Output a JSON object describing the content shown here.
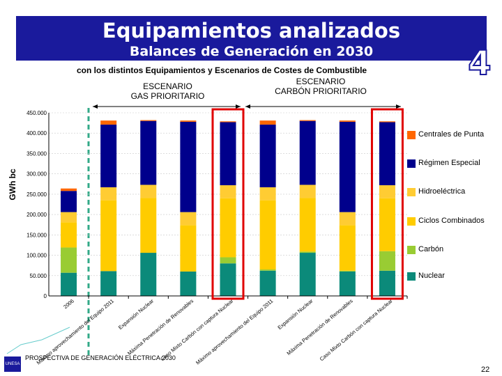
{
  "banner": {
    "title": "Equipamientos analizados",
    "subtitle": "Balances de Generación en 2030"
  },
  "subtitle": "con los distintos Equipamientos y Escenarios de Costes de Combustible",
  "badge": "4",
  "scenarios": {
    "gas_line1": "ESCENARIO",
    "gas_line2": "GAS PRIORITARIO",
    "coal_line1": "ESCENARIO",
    "coal_line2": "CARBÓN PRIORITARIO"
  },
  "footer": "PROSPECTIVA DE GENERACIÓN ELÉCTRICA 2030",
  "page_number": "22",
  "logo_text": "UNESA",
  "colors": {
    "nuclear": "#0b8a7a",
    "carbon": "#99cc33",
    "ciclos": "#ffcc00",
    "hidro": "#ffcc33",
    "regimen": "#00008c",
    "puntas": "#ff6600",
    "highlight": "#e00000",
    "dashed": "#33aa88"
  },
  "chart_data": {
    "type": "bar",
    "stacked": true,
    "ylabel": "GWh bc",
    "ylim": [
      0,
      450000
    ],
    "yticks": [
      "0",
      "50.000",
      "100.000",
      "150.000",
      "200.000",
      "250.000",
      "300.000",
      "350.000",
      "400.000",
      "450.000"
    ],
    "categories": [
      "2006",
      "Máximo aprovechamiento del Equipo 2011",
      "Expansión Nuclear",
      "Máxima Penetración de Renovables",
      "Caso Mixto Carbón con captura Nuclear",
      "Máximo aprovechamiento del Equipo 2011",
      "Expansión Nuclear",
      "Máxima Penetración de Renovables",
      "Caso Mixto Carbón con captura Nuclear"
    ],
    "series": [
      {
        "name": "Nuclear",
        "values": [
          57000,
          61000,
          106000,
          60000,
          80000,
          62000,
          106000,
          60000,
          62000
        ]
      },
      {
        "name": "Carbón",
        "values": [
          62000,
          0,
          0,
          0,
          15000,
          3000,
          3000,
          2000,
          48000
        ]
      },
      {
        "name": "Ciclos Combinados",
        "values": [
          62000,
          174000,
          135000,
          114000,
          145000,
          170000,
          132000,
          112000,
          130000
        ]
      },
      {
        "name": "Hidroeléctrica",
        "values": [
          25000,
          32000,
          32000,
          32000,
          32000,
          32000,
          32000,
          32000,
          32000
        ]
      },
      {
        "name": "Régimen Especial",
        "values": [
          52000,
          154000,
          157000,
          222000,
          155000,
          154000,
          157000,
          222000,
          155000
        ]
      },
      {
        "name": "Centrales de Punta",
        "values": [
          6000,
          10000,
          2000,
          3000,
          2000,
          10000,
          2000,
          3000,
          2000
        ]
      }
    ],
    "legend": [
      "Centrales de Punta",
      "Régimen Especial",
      "Hidroeléctrica",
      "Ciclos Combinados",
      "Carbón",
      "Nuclear"
    ],
    "legend_position": "right",
    "highlighted_categories": [
      4,
      8
    ]
  }
}
